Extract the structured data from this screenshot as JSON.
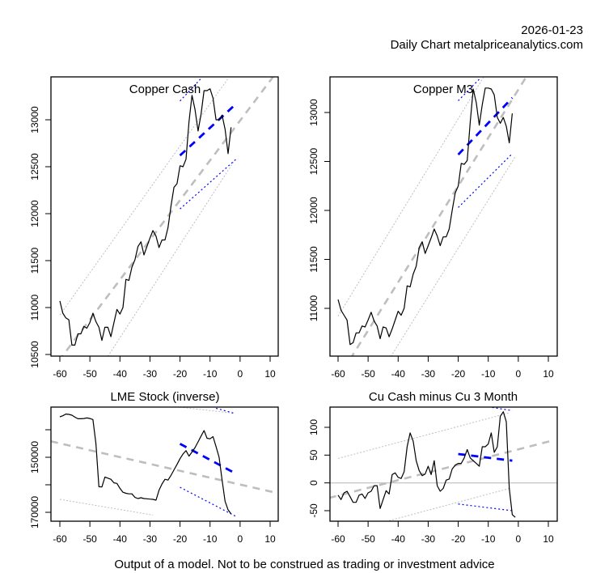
{
  "header": {
    "date": "2026-01-23",
    "subtitle": "Daily Chart metalpriceanalytics.com"
  },
  "footer": {
    "disclaimer": "Output of a model. Not to be construed as trading or investment advice"
  },
  "colors": {
    "price_line": "#000000",
    "trend": "#bebebe",
    "band": "#bebebe",
    "recent_trend": "#0000ff",
    "zero_line": "#bebebe"
  },
  "chart_data": [
    {
      "type": "line",
      "title": "Copper Cash",
      "xlabel": "",
      "ylabel": "",
      "xlim": [
        -63,
        12
      ],
      "ylim": [
        10480,
        13440
      ],
      "x_ticks": [
        -60,
        -50,
        -40,
        -30,
        -20,
        -10,
        0,
        10
      ],
      "y_ticks": [
        10500,
        11000,
        11500,
        12000,
        12500,
        13000
      ],
      "y_inverted": false,
      "series": {
        "price": {
          "x": [
            -60,
            -59,
            -58,
            -57,
            -56,
            -55,
            -54,
            -53,
            -52,
            -51,
            -50,
            -49,
            -48,
            -47,
            -46,
            -45,
            -44,
            -43,
            -42,
            -41,
            -40,
            -39,
            -38,
            -37,
            -36,
            -35,
            -34,
            -33,
            -32,
            -31,
            -30,
            -29,
            -28,
            -27,
            -26,
            -25,
            -24,
            -23,
            -22,
            -21,
            -20,
            -19,
            -18,
            -17,
            -16,
            -15,
            -14,
            -13,
            -12,
            -11,
            -10,
            -9,
            -8,
            -7,
            -6,
            -5,
            -4,
            -3,
            -2,
            -1
          ],
          "y": [
            11070,
            10940,
            10890,
            10870,
            10600,
            10600,
            10720,
            10720,
            10800,
            10780,
            10840,
            10940,
            10850,
            10790,
            10650,
            10790,
            10790,
            10690,
            10840,
            10980,
            10930,
            11000,
            11300,
            11290,
            11430,
            11510,
            11650,
            11700,
            11560,
            11650,
            11740,
            11820,
            11760,
            11640,
            11720,
            11720,
            11850,
            12080,
            12280,
            12320,
            12510,
            12500,
            12580,
            12980,
            13260,
            13110,
            12880,
            13060,
            13310,
            13310,
            13330,
            13230,
            13000,
            13000,
            13050,
            12900,
            12640,
            12920,
            null,
            null
          ]
        },
        "trend": {
          "x": [
            -63,
            12
          ],
          "y": [
            10320,
            13500
          ]
        },
        "upper_band": {
          "x": [
            -60,
            -4
          ],
          "y": [
            10920,
            13440
          ]
        },
        "lower_band": {
          "x": [
            -44,
            -2
          ],
          "y": [
            10480,
            12560
          ]
        },
        "recent_trend": {
          "x": [
            -20,
            -2
          ],
          "y": [
            12620,
            13150
          ]
        },
        "recent_upper": {
          "x": [
            -20,
            -13
          ],
          "y": [
            13200,
            13440
          ]
        },
        "recent_lower": {
          "x": [
            -20,
            -1
          ],
          "y": [
            12050,
            12590
          ]
        }
      }
    },
    {
      "type": "line",
      "title": "Copper M3",
      "xlabel": "",
      "ylabel": "",
      "xlim": [
        -63,
        12
      ],
      "ylim": [
        10480,
        13440
      ],
      "x_ticks": [
        -60,
        -50,
        -40,
        -30,
        -20,
        -10,
        0,
        10
      ],
      "y_ticks": [
        11000,
        11500,
        12000,
        12500,
        13000
      ],
      "y_inverted": false,
      "series": {
        "price": {
          "x": [
            -60,
            -59,
            -58,
            -57,
            -56,
            -55,
            -54,
            -53,
            -52,
            -51,
            -50,
            -49,
            -48,
            -47,
            -46,
            -45,
            -44,
            -43,
            -42,
            -41,
            -40,
            -39,
            -38,
            -37,
            -36,
            -35,
            -34,
            -33,
            -32,
            -31,
            -30,
            -29,
            -28,
            -27,
            -26,
            -25,
            -24,
            -23,
            -22,
            -21,
            -20,
            -19,
            -18,
            -17,
            -16,
            -15,
            -14,
            -13,
            -12,
            -11,
            -10,
            -9,
            -8,
            -7,
            -6,
            -5,
            -4,
            -3,
            -2,
            -1
          ],
          "y": [
            11090,
            10980,
            10930,
            10880,
            10630,
            10650,
            10750,
            10750,
            10820,
            10810,
            10880,
            10960,
            10870,
            10820,
            10690,
            10810,
            10800,
            10710,
            10790,
            10880,
            10970,
            10930,
            11000,
            11230,
            11220,
            11350,
            11430,
            11620,
            11680,
            11560,
            11640,
            11720,
            11810,
            11740,
            11640,
            11730,
            11730,
            11810,
            12000,
            12180,
            12250,
            12480,
            12470,
            12510,
            12900,
            13240,
            13100,
            12870,
            13080,
            13250,
            13250,
            13240,
            13180,
            12950,
            12890,
            12950,
            12860,
            12690,
            12990,
            null
          ],
          "x_note": ""
        },
        "trend": {
          "x": [
            -56,
            4
          ],
          "y": [
            10480,
            13430
          ]
        },
        "upper_band": {
          "x": [
            -60,
            -10
          ],
          "y": [
            10920,
            13440
          ]
        },
        "lower_band": {
          "x": [
            -43,
            -1
          ],
          "y": [
            10480,
            12550
          ]
        },
        "recent_trend": {
          "x": [
            -20,
            -2
          ],
          "y": [
            12570,
            13150
          ]
        },
        "recent_upper": {
          "x": [
            -20,
            -13
          ],
          "y": [
            13120,
            13340
          ]
        },
        "recent_lower": {
          "x": [
            -20,
            -2
          ],
          "y": [
            12030,
            12580
          ]
        }
      }
    },
    {
      "type": "line",
      "title": "LME Stock (inverse)",
      "xlabel": "",
      "ylabel": "",
      "xlim": [
        -63,
        12
      ],
      "ylim": [
        173000,
        132000
      ],
      "x_ticks": [
        -60,
        -50,
        -40,
        -30,
        -20,
        -10,
        0,
        10
      ],
      "y_ticks": [
        140000,
        150000,
        160000,
        170000
      ],
      "y_tick_labels": [
        "",
        "150000",
        "",
        "170000"
      ],
      "y_inverted": true,
      "series": {
        "price": {
          "x": [
            -60,
            -59,
            -58,
            -57,
            -56,
            -55,
            -54,
            -53,
            -52,
            -51,
            -50,
            -49,
            -48,
            -47,
            -46,
            -45,
            -44,
            -43,
            -42,
            -41,
            -40,
            -39,
            -38,
            -37,
            -36,
            -35,
            -34,
            -33,
            -32,
            -31,
            -30,
            -29,
            -28,
            -27,
            -26,
            -25,
            -24,
            -23,
            -22,
            -21,
            -20,
            -19,
            -18,
            -17,
            -16,
            -15,
            -14,
            -13,
            -12,
            -11,
            -10,
            -9,
            -8,
            -7,
            -6,
            -5,
            -4,
            -3,
            -2,
            -1
          ],
          "y": [
            135300,
            134900,
            134300,
            134400,
            134700,
            135400,
            136000,
            136000,
            135900,
            135700,
            135900,
            136300,
            145000,
            160700,
            160800,
            157200,
            157600,
            158000,
            159300,
            159500,
            161300,
            162700,
            163100,
            163300,
            163300,
            164600,
            165000,
            164700,
            165000,
            165100,
            165200,
            165300,
            165600,
            162000,
            159700,
            158000,
            158300,
            156600,
            154600,
            152600,
            150500,
            148800,
            147600,
            149600,
            148100,
            146500,
            144400,
            142300,
            140300,
            143100,
            143300,
            142500,
            146100,
            150000,
            158300,
            166000,
            169100,
            170600,
            null,
            null
          ]
        },
        "trend": {
          "x": [
            -63,
            12
          ],
          "y": [
            144200,
            162900
          ]
        },
        "upper_band": {
          "x": [
            -20,
            -2
          ],
          "y": [
            131800,
            134000
          ]
        },
        "lower_band": {
          "x": [
            -60,
            -29
          ],
          "y": [
            165300,
            171000
          ]
        },
        "recent_trend": {
          "x": [
            -20,
            -2
          ],
          "y": [
            145100,
            155600
          ]
        },
        "recent_upper": {
          "x": [
            -8,
            -2
          ],
          "y": [
            132200,
            134000
          ]
        },
        "recent_lower": {
          "x": [
            -20,
            -1
          ],
          "y": [
            160900,
            171700
          ]
        }
      }
    },
    {
      "type": "line",
      "title": "Cu Cash minus Cu 3 Month",
      "xlabel": "",
      "ylabel": "",
      "xlim": [
        -63,
        12
      ],
      "ylim": [
        -68,
        137
      ],
      "x_ticks": [
        -60,
        -50,
        -40,
        -30,
        -20,
        -10,
        0,
        10
      ],
      "y_ticks": [
        -50,
        0,
        50,
        100
      ],
      "y_inverted": false,
      "series": {
        "price": {
          "x": [
            -60,
            -59,
            -58,
            -57,
            -56,
            -55,
            -54,
            -53,
            -52,
            -51,
            -50,
            -49,
            -48,
            -47,
            -46,
            -45,
            -44,
            -43,
            -42,
            -41,
            -40,
            -39,
            -38,
            -37,
            -36,
            -35,
            -34,
            -33,
            -32,
            -31,
            -30,
            -29,
            -28,
            -27,
            -26,
            -25,
            -24,
            -23,
            -22,
            -21,
            -20,
            -19,
            -18,
            -17,
            -16,
            -15,
            -14,
            -13,
            -12,
            -11,
            -10,
            -9,
            -8,
            -7,
            -6,
            -5,
            -4,
            -3,
            -2,
            -1
          ],
          "y": [
            -22,
            -30,
            -18,
            -15,
            -25,
            -35,
            -35,
            -22,
            -20,
            -28,
            -18,
            -15,
            -5,
            -5,
            -46,
            -30,
            -14,
            -20,
            15,
            18,
            10,
            8,
            20,
            65,
            90,
            75,
            40,
            22,
            13,
            16,
            30,
            15,
            40,
            -5,
            -15,
            -10,
            5,
            7,
            25,
            32,
            35,
            35,
            45,
            60,
            45,
            40,
            35,
            30,
            65,
            65,
            70,
            90,
            55,
            65,
            120,
            128,
            110,
            -10,
            -57,
            -62
          ]
        },
        "trend": {
          "x": [
            -63,
            12
          ],
          "y": [
            -27,
            77
          ]
        },
        "upper_band": {
          "x": [
            -60,
            -3
          ],
          "y": [
            44,
            126
          ]
        },
        "lower_band": {
          "x": [
            -43,
            -3
          ],
          "y": [
            -68,
            -10
          ]
        },
        "zero_line": {
          "y": 0
        },
        "recent_trend": {
          "x": [
            -20,
            -2
          ],
          "y": [
            52,
            40
          ]
        },
        "recent_upper": {
          "x": [
            -10,
            -2
          ],
          "y": [
            137,
            130
          ]
        },
        "recent_lower": {
          "x": [
            -20,
            -2
          ],
          "y": [
            -38,
            -50
          ]
        }
      }
    }
  ]
}
